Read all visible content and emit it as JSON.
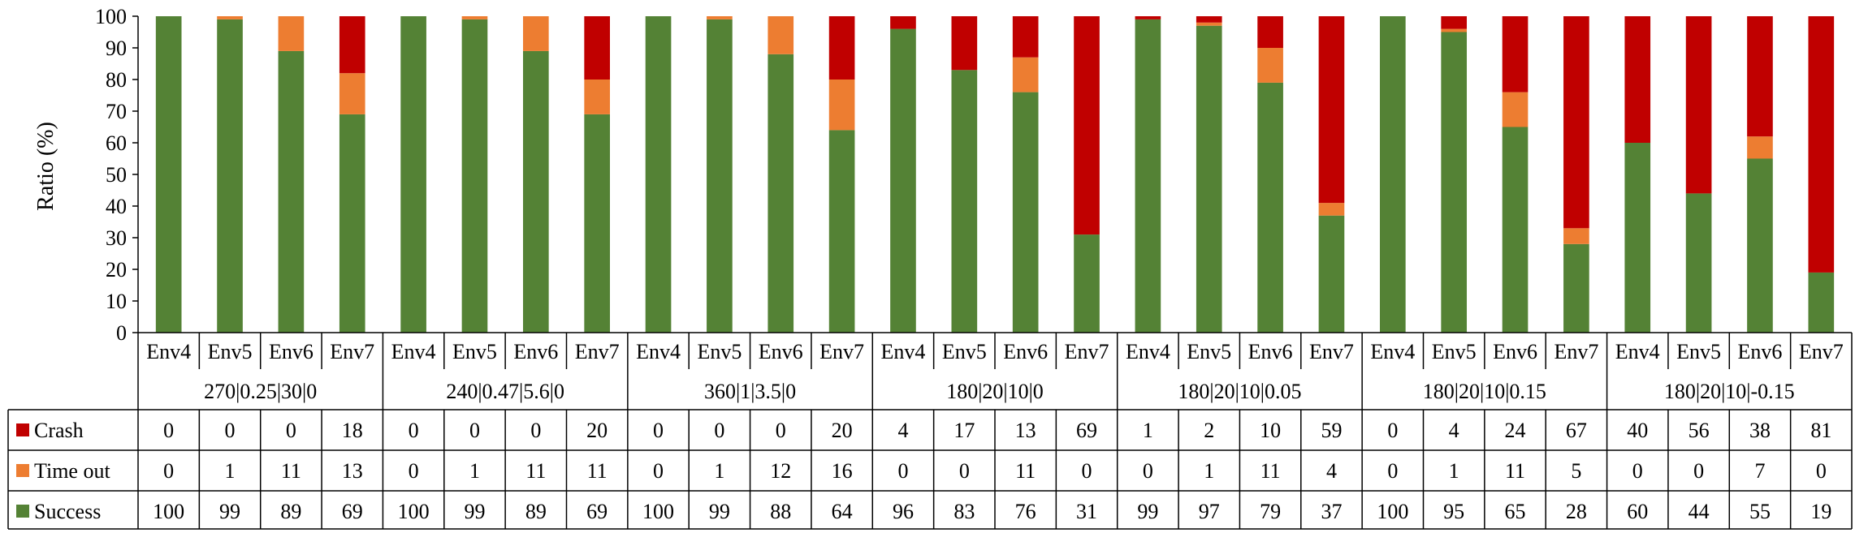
{
  "chart_data": {
    "type": "bar",
    "stacked": true,
    "ylabel": "Ratio (%)",
    "ylim": [
      0,
      100
    ],
    "yticks": [
      0,
      10,
      20,
      30,
      40,
      50,
      60,
      70,
      80,
      90,
      100
    ],
    "legend_placement": "left of data table",
    "groups": [
      "270|0.25|30|0",
      "240|0.47|5.6|0",
      "360|1|3.5|0",
      "180|20|10|0",
      "180|20|10|0.05",
      "180|20|10|0.15",
      "180|20|10|-0.15"
    ],
    "subcategories": [
      "Env4",
      "Env5",
      "Env6",
      "Env7"
    ],
    "categories": [
      "Env4",
      "Env5",
      "Env6",
      "Env7",
      "Env4",
      "Env5",
      "Env6",
      "Env7",
      "Env4",
      "Env5",
      "Env6",
      "Env7",
      "Env4",
      "Env5",
      "Env6",
      "Env7",
      "Env4",
      "Env5",
      "Env6",
      "Env7",
      "Env4",
      "Env5",
      "Env6",
      "Env7",
      "Env4",
      "Env5",
      "Env6",
      "Env7"
    ],
    "series": [
      {
        "name": "Crash",
        "color": "#C00000",
        "values": [
          0,
          0,
          0,
          18,
          0,
          0,
          0,
          20,
          0,
          0,
          0,
          20,
          4,
          17,
          13,
          69,
          1,
          2,
          10,
          59,
          0,
          4,
          24,
          67,
          40,
          56,
          38,
          81
        ]
      },
      {
        "name": "Time out",
        "color": "#ED7D31",
        "values": [
          0,
          1,
          11,
          13,
          0,
          1,
          11,
          11,
          0,
          1,
          12,
          16,
          0,
          0,
          11,
          0,
          0,
          1,
          11,
          4,
          0,
          1,
          11,
          5,
          0,
          0,
          7,
          0
        ]
      },
      {
        "name": "Success",
        "color": "#548235",
        "values": [
          100,
          99,
          89,
          69,
          100,
          99,
          89,
          69,
          100,
          99,
          88,
          64,
          96,
          83,
          76,
          31,
          99,
          97,
          79,
          37,
          100,
          95,
          65,
          28,
          60,
          44,
          55,
          19
        ]
      }
    ]
  }
}
